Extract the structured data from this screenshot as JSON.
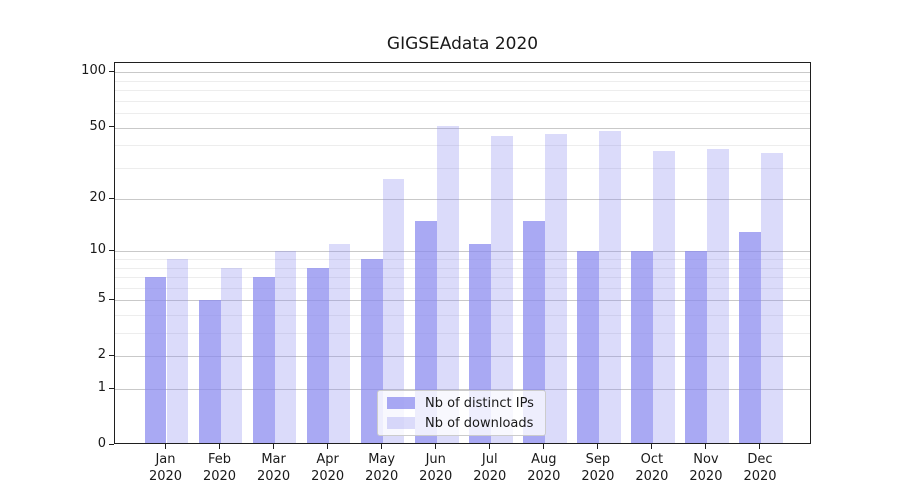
{
  "chart_data": {
    "type": "bar",
    "title": "GIGSEAdata 2020",
    "categories": [
      "Jan",
      "Feb",
      "Mar",
      "Apr",
      "May",
      "Jun",
      "Jul",
      "Aug",
      "Sep",
      "Oct",
      "Nov",
      "Dec"
    ],
    "x_tick_second_line": "2020",
    "series": [
      {
        "name": "Nb of distinct IPs",
        "color": "#8888ee",
        "alpha": 0.72,
        "values": [
          7,
          5,
          7,
          8,
          9,
          15,
          11,
          15,
          10,
          10,
          10,
          13
        ]
      },
      {
        "name": "Nb of downloads",
        "color": "#8888ee",
        "alpha": 0.3,
        "values": [
          9,
          8,
          10,
          11,
          26,
          51,
          45,
          46,
          48,
          37,
          38,
          36
        ]
      }
    ],
    "xlabel": "",
    "ylabel": "",
    "yscale": "log1p",
    "ylim": [
      0,
      112.4
    ],
    "yticks": [
      0,
      1,
      2,
      5,
      10,
      20,
      50,
      100
    ],
    "minor_yticks": [
      3,
      4,
      6,
      7,
      8,
      9,
      30,
      40,
      60,
      70,
      80,
      90
    ],
    "grid": true,
    "legend_position": "lower center",
    "colors": {
      "major_grid": "#c9c9c9",
      "minor_grid": "#ededed",
      "spine": "#1f1f1f",
      "text": "#1a1a1a",
      "background": "#ffffff"
    }
  }
}
